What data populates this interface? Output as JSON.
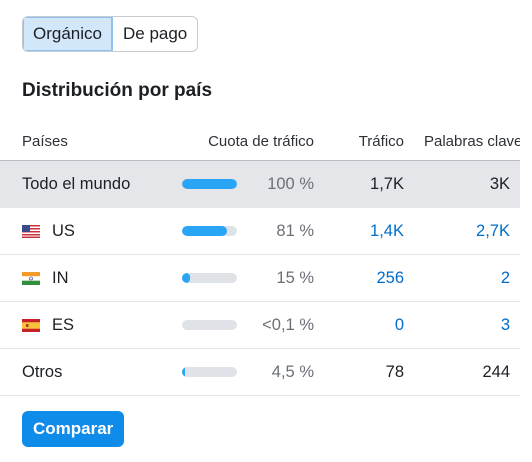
{
  "toggle": {
    "organic_label": "Orgánico",
    "paid_label": "De pago"
  },
  "section": {
    "title": "Distribución por país"
  },
  "table": {
    "headers": {
      "country": "Países",
      "share": "Cuota de tráfico",
      "traffic": "Tráfico",
      "keywords": "Palabras clave"
    },
    "rows": [
      {
        "country": "Todo el mundo",
        "flag": "",
        "share_label": "100 %",
        "share_fraction": 1.0,
        "traffic": "1,7K",
        "keywords": "3K",
        "linked": false
      },
      {
        "country": "US",
        "flag": "us-flag-icon",
        "share_label": "81 %",
        "share_fraction": 0.81,
        "traffic": "1,4K",
        "keywords": "2,7K",
        "linked": true
      },
      {
        "country": "IN",
        "flag": "in-flag-icon",
        "share_label": "15 %",
        "share_fraction": 0.15,
        "traffic": "256",
        "keywords": "2",
        "linked": true
      },
      {
        "country": "ES",
        "flag": "es-flag-icon",
        "share_label": "<0,1 %",
        "share_fraction": 0.0,
        "traffic": "0",
        "keywords": "3",
        "linked": true
      },
      {
        "country": "Otros",
        "flag": "",
        "share_label": "4,5 %",
        "share_fraction": 0.045,
        "traffic": "78",
        "keywords": "244",
        "linked": false
      }
    ]
  },
  "compare_button": "Comparar",
  "colors": {
    "accent": "#0f8bea",
    "bar_fill": "#2aa4f4",
    "link": "#006dca",
    "selected_toggle": "#d3e7fb"
  }
}
